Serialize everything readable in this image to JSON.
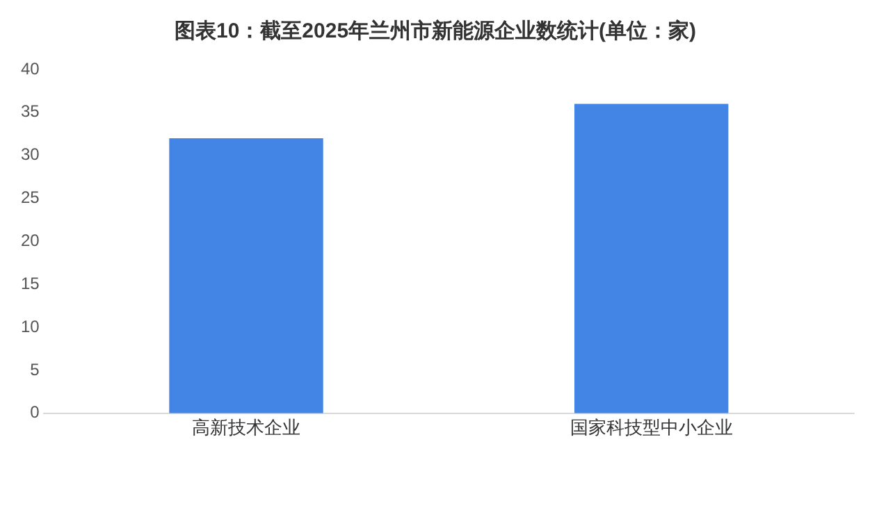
{
  "chart_data": {
    "type": "bar",
    "title": "图表10：截至2025年兰州市新能源企业数统计(单位：家)",
    "categories": [
      "高新技术企业",
      "国家科技型中小企业"
    ],
    "values": [
      32,
      36
    ],
    "color": "#4285e4",
    "ylim": [
      0,
      40
    ],
    "yticks": [
      0,
      5,
      10,
      15,
      20,
      25,
      30,
      35,
      40
    ],
    "grid": false,
    "legend": false
  }
}
